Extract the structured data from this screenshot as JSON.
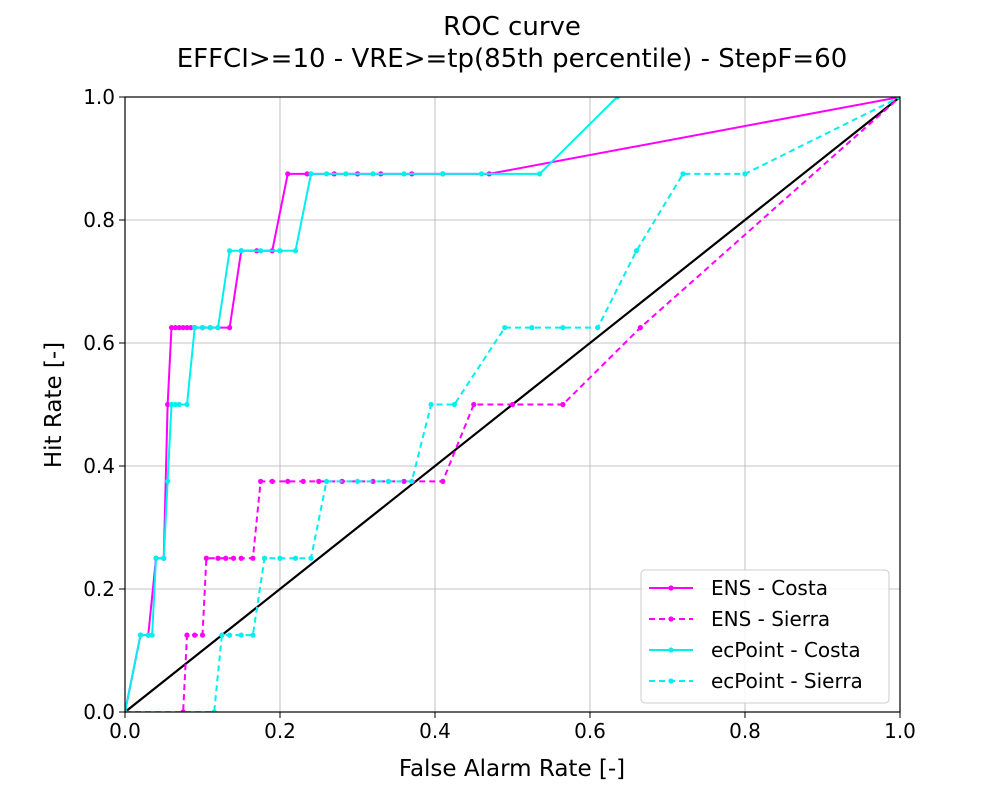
{
  "chart_data": {
    "type": "line",
    "title": "ROC curve",
    "subtitle": "EFFCI>=10 - VRE>=tp(85th percentile) - StepF=60",
    "xlabel": "False Alarm Rate [-]",
    "ylabel": "Hit Rate [-]",
    "xlim": [
      0.0,
      1.0
    ],
    "ylim": [
      0.0,
      1.0
    ],
    "xticks": [
      "0.0",
      "0.2",
      "0.4",
      "0.6",
      "0.8",
      "1.0"
    ],
    "yticks": [
      "0.0",
      "0.2",
      "0.4",
      "0.6",
      "0.8",
      "1.0"
    ],
    "grid": true,
    "legend_position": "lower-right",
    "diagonal": {
      "x": [
        0.0,
        1.0
      ],
      "y": [
        0.0,
        1.0
      ],
      "color": "#000000"
    },
    "series": [
      {
        "name": "ENS - Costa",
        "color": "#ff00ff",
        "dashed": false,
        "x": [
          0.0,
          0.02,
          0.03,
          0.04,
          0.05,
          0.055,
          0.06,
          0.065,
          0.07,
          0.075,
          0.08,
          0.085,
          0.09,
          0.1,
          0.11,
          0.12,
          0.135,
          0.15,
          0.17,
          0.19,
          0.21,
          0.235,
          0.27,
          0.3,
          0.33,
          0.37,
          0.41,
          0.47,
          1.0
        ],
        "y": [
          0.0,
          0.125,
          0.125,
          0.25,
          0.25,
          0.5,
          0.625,
          0.625,
          0.625,
          0.625,
          0.625,
          0.625,
          0.625,
          0.625,
          0.625,
          0.625,
          0.625,
          0.75,
          0.75,
          0.75,
          0.875,
          0.875,
          0.875,
          0.875,
          0.875,
          0.875,
          0.875,
          0.875,
          1.0
        ]
      },
      {
        "name": "ENS - Sierra",
        "color": "#ff00ff",
        "dashed": true,
        "x": [
          0.0,
          0.075,
          0.08,
          0.09,
          0.1,
          0.105,
          0.12,
          0.13,
          0.14,
          0.15,
          0.165,
          0.175,
          0.19,
          0.21,
          0.23,
          0.25,
          0.28,
          0.32,
          0.36,
          0.41,
          0.45,
          0.5,
          0.565,
          0.665,
          1.0
        ],
        "y": [
          0.0,
          0.0,
          0.125,
          0.125,
          0.125,
          0.25,
          0.25,
          0.25,
          0.25,
          0.25,
          0.25,
          0.375,
          0.375,
          0.375,
          0.375,
          0.375,
          0.375,
          0.375,
          0.375,
          0.375,
          0.5,
          0.5,
          0.5,
          0.625,
          1.0
        ]
      },
      {
        "name": "ecPoint - Costa",
        "color": "#00f0f0",
        "dashed": false,
        "x": [
          0.0,
          0.02,
          0.03,
          0.035,
          0.04,
          0.05,
          0.055,
          0.06,
          0.065,
          0.07,
          0.08,
          0.09,
          0.1,
          0.11,
          0.12,
          0.135,
          0.15,
          0.175,
          0.2,
          0.22,
          0.24,
          0.26,
          0.285,
          0.32,
          0.36,
          0.41,
          0.46,
          0.535,
          0.635
        ],
        "y": [
          0.0,
          0.125,
          0.125,
          0.125,
          0.25,
          0.25,
          0.375,
          0.5,
          0.5,
          0.5,
          0.5,
          0.625,
          0.625,
          0.625,
          0.625,
          0.75,
          0.75,
          0.75,
          0.75,
          0.75,
          0.875,
          0.875,
          0.875,
          0.875,
          0.875,
          0.875,
          0.875,
          0.875,
          1.0
        ]
      },
      {
        "name": "ecPoint - Sierra",
        "color": "#00f0f0",
        "dashed": true,
        "x": [
          0.0,
          0.115,
          0.125,
          0.135,
          0.15,
          0.165,
          0.18,
          0.2,
          0.22,
          0.24,
          0.26,
          0.3,
          0.34,
          0.37,
          0.395,
          0.425,
          0.49,
          0.525,
          0.565,
          0.61,
          0.66,
          0.72,
          0.8,
          1.0
        ],
        "y": [
          0.0,
          0.0,
          0.125,
          0.125,
          0.125,
          0.125,
          0.25,
          0.25,
          0.25,
          0.25,
          0.375,
          0.375,
          0.375,
          0.375,
          0.5,
          0.5,
          0.625,
          0.625,
          0.625,
          0.625,
          0.75,
          0.875,
          0.875,
          1.0
        ]
      }
    ]
  }
}
